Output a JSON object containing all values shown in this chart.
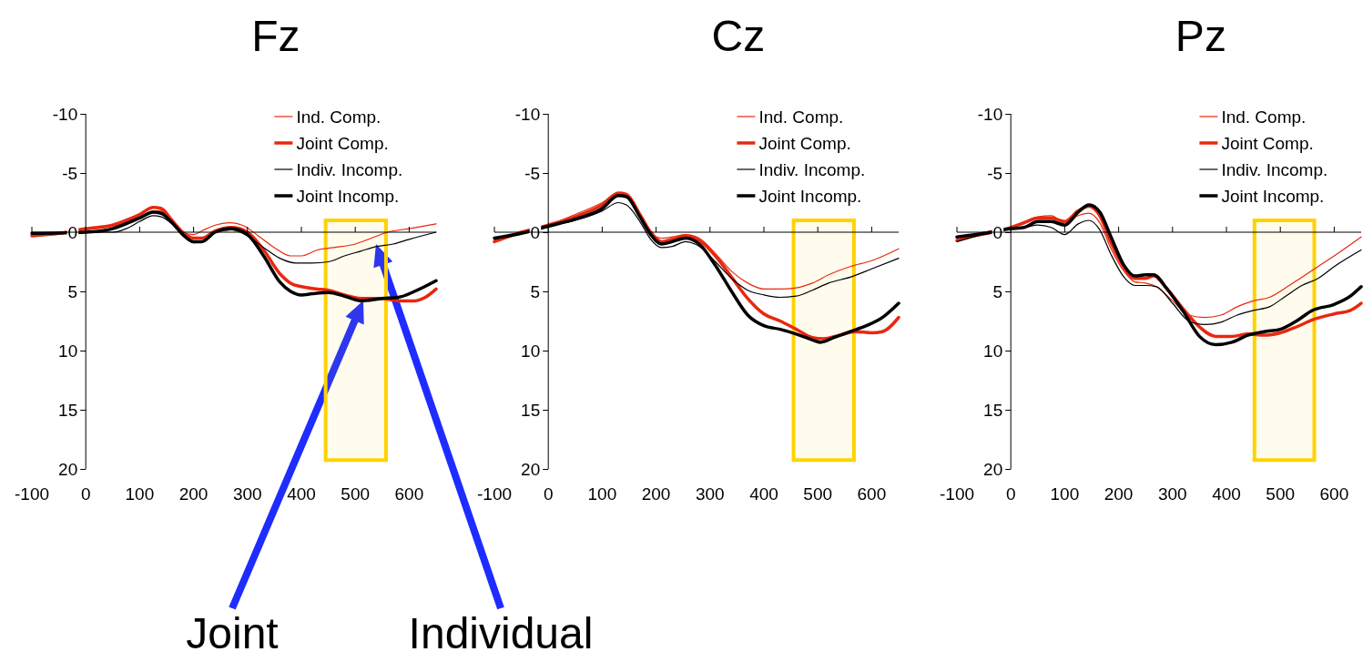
{
  "chart_data": [
    {
      "type": "line",
      "title": "Fz",
      "xlim": [
        -100,
        650
      ],
      "ylim": [
        20,
        -10
      ],
      "xticks": [
        -100,
        0,
        100,
        200,
        300,
        400,
        500,
        600
      ],
      "yticks": [
        -10,
        -5,
        0,
        5,
        10,
        15,
        20
      ],
      "legend": "top right",
      "bands": [
        {
          "axis": "x",
          "from": 445,
          "to": 557,
          "color": "#ffd200"
        }
      ],
      "annotations": [
        "Joint",
        "Individual"
      ],
      "series": [
        {
          "name": "Ind. Comp.",
          "color": "#e8280f",
          "x": [
            -100,
            0,
            50,
            100,
            125,
            140,
            160,
            180,
            200,
            215,
            240,
            265,
            290,
            320,
            350,
            380,
            400,
            430,
            460,
            500,
            530,
            560,
            600,
            650
          ],
          "values": [
            0.2,
            -0.2,
            -0.5,
            -1.3,
            -1.8,
            -1.8,
            -0.9,
            0,
            0.2,
            -0.1,
            -0.6,
            -0.8,
            -0.6,
            0.3,
            1.3,
            2.0,
            2.0,
            1.5,
            1.3,
            1.0,
            0.5,
            0,
            -0.3,
            -0.7
          ]
        },
        {
          "name": "Joint Comp.",
          "color": "#e8280f",
          "x": [
            -100,
            -50,
            0,
            50,
            75,
            100,
            125,
            140,
            160,
            180,
            200,
            215,
            240,
            270,
            300,
            330,
            360,
            380,
            400,
            430,
            450,
            480,
            510,
            550,
            580,
            610,
            630,
            650
          ],
          "values": [
            0.3,
            0.1,
            -0.3,
            -0.6,
            -1.0,
            -1.5,
            -2.1,
            -2.0,
            -1.0,
            0,
            0.5,
            0.5,
            -0.1,
            -0.4,
            0,
            1.5,
            3.5,
            4.3,
            4.6,
            4.8,
            4.9,
            5.3,
            5.6,
            5.6,
            5.8,
            5.8,
            5.5,
            4.8
          ]
        },
        {
          "name": "Indiv. Incomp.",
          "color": "#000000",
          "x": [
            -100,
            0,
            50,
            75,
            100,
            125,
            140,
            160,
            180,
            200,
            215,
            240,
            270,
            300,
            330,
            360,
            390,
            420,
            450,
            480,
            510,
            540,
            570,
            600,
            650
          ],
          "values": [
            0.1,
            0,
            0,
            -0.3,
            -0.9,
            -1.4,
            -1.3,
            -0.7,
            0.2,
            0.9,
            0.8,
            0,
            -0.2,
            0.3,
            1.3,
            2.2,
            2.6,
            2.6,
            2.5,
            2.0,
            1.6,
            1.2,
            1.0,
            0.6,
            0.0
          ]
        },
        {
          "name": "Joint Incomp.",
          "color": "#000000",
          "x": [
            -100,
            0,
            50,
            100,
            125,
            140,
            160,
            180,
            200,
            215,
            240,
            270,
            300,
            330,
            360,
            380,
            400,
            420,
            450,
            480,
            510,
            550,
            580,
            610,
            650
          ],
          "values": [
            0.1,
            0,
            -0.3,
            -1.2,
            -1.7,
            -1.6,
            -0.8,
            0.2,
            0.8,
            0.8,
            0.0,
            -0.3,
            0.2,
            2.0,
            4.2,
            5.0,
            5.3,
            5.2,
            5.1,
            5.4,
            5.8,
            5.6,
            5.5,
            5.0,
            4.1
          ]
        }
      ]
    },
    {
      "type": "line",
      "title": "Cz",
      "xlim": [
        -100,
        650
      ],
      "ylim": [
        20,
        -10
      ],
      "xticks": [
        -100,
        0,
        100,
        200,
        300,
        400,
        500,
        600
      ],
      "yticks": [
        -10,
        -5,
        0,
        5,
        10,
        15,
        20
      ],
      "legend": "top right",
      "bands": [
        {
          "axis": "x",
          "from": 455,
          "to": 567,
          "color": "#ffd200"
        }
      ],
      "series": [
        {
          "name": "Ind. Comp.",
          "color": "#e8280f",
          "x": [
            -100,
            0,
            50,
            100,
            130,
            145,
            170,
            190,
            210,
            230,
            255,
            280,
            310,
            340,
            370,
            400,
            430,
            460,
            490,
            520,
            560,
            600,
            650
          ],
          "values": [
            0.7,
            -0.6,
            -1.5,
            -2.5,
            -3.3,
            -3.1,
            -1.4,
            0.1,
            0.5,
            0.4,
            0.2,
            0.5,
            1.8,
            3.3,
            4.3,
            4.8,
            4.8,
            4.7,
            4.3,
            3.6,
            2.9,
            2.4,
            1.4
          ]
        },
        {
          "name": "Joint Comp.",
          "color": "#e8280f",
          "x": [
            -100,
            -50,
            0,
            50,
            100,
            130,
            145,
            170,
            190,
            210,
            230,
            255,
            280,
            310,
            340,
            370,
            400,
            430,
            460,
            490,
            510,
            540,
            570,
            600,
            620,
            650
          ],
          "values": [
            0.8,
            0,
            -0.6,
            -1.3,
            -2.3,
            -3.3,
            -3.2,
            -1.5,
            0,
            0.8,
            0.6,
            0.3,
            0.7,
            2.0,
            3.8,
            5.6,
            6.9,
            7.5,
            8.2,
            8.9,
            9.0,
            8.7,
            8.4,
            8.5,
            8.4,
            7.2
          ]
        },
        {
          "name": "Indiv. Incomp.",
          "color": "#000000",
          "x": [
            -100,
            0,
            50,
            100,
            130,
            145,
            170,
            190,
            210,
            230,
            255,
            280,
            310,
            340,
            370,
            400,
            430,
            460,
            490,
            520,
            560,
            600,
            650
          ],
          "values": [
            0.6,
            -0.5,
            -1.0,
            -1.8,
            -2.5,
            -2.3,
            -0.9,
            0.6,
            1.3,
            1.2,
            0.8,
            1.2,
            2.5,
            3.9,
            4.9,
            5.3,
            5.5,
            5.4,
            4.9,
            4.3,
            3.8,
            3.1,
            2.2
          ]
        },
        {
          "name": "Joint Incomp.",
          "color": "#000000",
          "x": [
            -100,
            -50,
            0,
            50,
            100,
            130,
            145,
            170,
            190,
            210,
            230,
            255,
            280,
            310,
            340,
            370,
            400,
            430,
            460,
            490,
            505,
            530,
            560,
            590,
            620,
            650
          ],
          "values": [
            0.5,
            0.1,
            -0.5,
            -1.1,
            -2.0,
            -3.1,
            -3.0,
            -1.3,
            0.2,
            1.0,
            0.8,
            0.5,
            1.0,
            2.8,
            5.0,
            7.0,
            7.9,
            8.2,
            8.6,
            9.1,
            9.3,
            8.9,
            8.4,
            7.9,
            7.2,
            6.0
          ]
        }
      ]
    },
    {
      "type": "line",
      "title": "Pz",
      "xlim": [
        -100,
        650
      ],
      "ylim": [
        20,
        -10
      ],
      "xticks": [
        -100,
        0,
        100,
        200,
        300,
        400,
        500,
        600
      ],
      "yticks": [
        -10,
        -5,
        0,
        5,
        10,
        15,
        20
      ],
      "legend": "top right",
      "bands": [
        {
          "axis": "x",
          "from": 452,
          "to": 563,
          "color": "#ffd200"
        }
      ],
      "series": [
        {
          "name": "Ind. Comp.",
          "color": "#e8280f",
          "x": [
            -100,
            0,
            25,
            50,
            75,
            100,
            125,
            145,
            165,
            185,
            210,
            230,
            250,
            270,
            300,
            330,
            360,
            390,
            420,
            450,
            480,
            510,
            540,
            570,
            600,
            650
          ],
          "values": [
            0.6,
            -0.4,
            -0.9,
            -1.3,
            -1.4,
            -0.8,
            -1.4,
            -1.6,
            -0.8,
            1.3,
            3.3,
            4.2,
            4.3,
            4.6,
            5.8,
            7.0,
            7.2,
            7.0,
            6.3,
            5.8,
            5.5,
            4.7,
            3.8,
            2.9,
            2.0,
            0.4
          ]
        },
        {
          "name": "Joint Comp.",
          "color": "#e8280f",
          "x": [
            -100,
            -50,
            0,
            25,
            50,
            75,
            100,
            125,
            145,
            165,
            185,
            210,
            230,
            250,
            265,
            290,
            320,
            350,
            380,
            410,
            440,
            470,
            500,
            530,
            560,
            600,
            630,
            650
          ],
          "values": [
            0.7,
            0.1,
            -0.4,
            -0.8,
            -1.2,
            -1.2,
            -0.9,
            -1.8,
            -2.2,
            -1.4,
            0.8,
            3.0,
            3.9,
            3.9,
            3.7,
            4.8,
            6.5,
            8.0,
            8.8,
            8.8,
            8.6,
            8.7,
            8.5,
            8.0,
            7.4,
            6.9,
            6.6,
            6.0
          ]
        },
        {
          "name": "Indiv. Incomp.",
          "color": "#000000",
          "x": [
            -100,
            0,
            25,
            50,
            75,
            100,
            125,
            145,
            165,
            185,
            210,
            230,
            250,
            270,
            300,
            330,
            360,
            390,
            420,
            450,
            480,
            510,
            540,
            570,
            600,
            650
          ],
          "values": [
            0.8,
            -0.3,
            -0.4,
            -0.6,
            -0.4,
            0.2,
            -0.7,
            -1.0,
            -0.2,
            1.8,
            3.8,
            4.5,
            4.5,
            4.6,
            6.0,
            7.5,
            7.8,
            7.6,
            7.0,
            6.6,
            6.3,
            5.4,
            4.5,
            3.9,
            2.9,
            1.5
          ]
        },
        {
          "name": "Joint Incomp.",
          "color": "#000000",
          "x": [
            -100,
            -50,
            0,
            25,
            50,
            75,
            100,
            125,
            145,
            165,
            185,
            210,
            230,
            250,
            265,
            290,
            320,
            350,
            380,
            410,
            440,
            470,
            500,
            530,
            560,
            600,
            630,
            650
          ],
          "values": [
            0.4,
            0.1,
            -0.3,
            -0.4,
            -0.9,
            -0.9,
            -0.6,
            -1.7,
            -2.3,
            -1.7,
            0.3,
            2.8,
            3.7,
            3.6,
            3.6,
            4.8,
            6.7,
            8.8,
            9.5,
            9.3,
            8.7,
            8.4,
            8.2,
            7.5,
            6.6,
            6.1,
            5.4,
            4.6
          ]
        }
      ]
    }
  ]
}
